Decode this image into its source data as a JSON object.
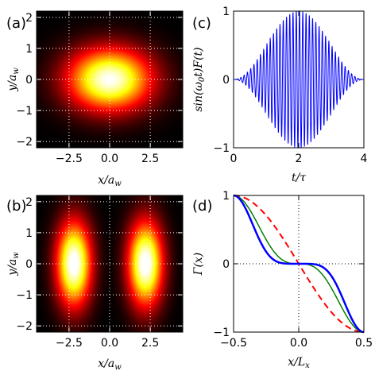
{
  "chart_data": [
    {
      "id": "a",
      "type": "heatmap",
      "panel_label": "(a)",
      "xlabel": "x/a_w",
      "ylabel": "y/a_w",
      "xlim": [
        -4.5,
        4.5
      ],
      "ylim": [
        -2.2,
        2.2
      ],
      "xticks": [
        -2.5,
        0.0,
        2.5
      ],
      "xtick_labels": [
        "−2.5",
        "0.0",
        "2.5"
      ],
      "yticks": [
        -2,
        -1,
        0,
        1,
        2
      ],
      "ytick_labels": [
        "−2",
        "−1",
        "0",
        "1",
        "2"
      ],
      "grid": true,
      "colormap": "hot",
      "field": "single elongated Gaussian mode centered at (0, 0), sigma_x ≈ 1.8, sigma_y ≈ 0.7"
    },
    {
      "id": "b",
      "type": "heatmap",
      "panel_label": "(b)",
      "xlabel": "x/a_w",
      "ylabel": "y/a_w",
      "xlim": [
        -4.5,
        4.5
      ],
      "ylim": [
        -2.2,
        2.2
      ],
      "xticks": [
        -2.5,
        0.0,
        2.5
      ],
      "xtick_labels": [
        "−2.5",
        "0.0",
        "2.5"
      ],
      "yticks": [
        -2,
        -1,
        0,
        1,
        2
      ],
      "ytick_labels": [
        "−2",
        "−1",
        "0",
        "1",
        "2"
      ],
      "grid": true,
      "colormap": "hot",
      "field": "two-lobe mode with peaks at x = −2.2 and x = 2.2, y = 0"
    },
    {
      "id": "c",
      "type": "line",
      "panel_label": "(c)",
      "xlabel": "t/τ",
      "ylabel": "sin(ω_0 t)F(t)",
      "xlim": [
        0,
        4
      ],
      "ylim": [
        -1,
        1
      ],
      "xticks": [
        0,
        2,
        4
      ],
      "xtick_labels": [
        "0",
        "2",
        "4"
      ],
      "yticks": [
        -1,
        0,
        1
      ],
      "ytick_labels": [
        "−1",
        "0",
        "1"
      ],
      "grid": false,
      "series": [
        {
          "color": "#0000ff",
          "function": "sin(2*pi*f*t) * sin^2(pi*t/4)",
          "cycles_per_unit_t": 10
        }
      ]
    },
    {
      "id": "d",
      "type": "line",
      "panel_label": "(d)",
      "xlabel": "x/L_x",
      "ylabel": "Γ(x)",
      "xlim": [
        -0.5,
        0.5
      ],
      "ylim": [
        -1,
        1
      ],
      "xticks": [
        -0.5,
        0.0,
        0.5
      ],
      "xtick_labels": [
        "−0.5",
        "0.0",
        "0.5"
      ],
      "yticks": [
        -1,
        0,
        1
      ],
      "ytick_labels": [
        "−1",
        "0",
        "1"
      ],
      "grid": "zero-lines",
      "series": [
        {
          "color": "#ff0000",
          "style": "dashed",
          "x": [
            -0.5,
            -0.4,
            -0.3,
            -0.2,
            -0.1,
            0.0,
            0.1,
            0.2,
            0.3,
            0.4,
            0.5
          ],
          "y": [
            1.0,
            0.905,
            0.655,
            0.345,
            0.095,
            0.0,
            -0.095,
            -0.345,
            -0.655,
            -0.905,
            -1.0
          ]
        },
        {
          "color": "#008000",
          "style": "solid",
          "x": [
            -0.5,
            -0.4,
            -0.3,
            -0.2,
            -0.1,
            0.0,
            0.1,
            0.2,
            0.3,
            0.4,
            0.5
          ],
          "y": [
            1.0,
            0.81,
            0.42,
            0.14,
            0.03,
            0.0,
            -0.03,
            -0.14,
            -0.42,
            -0.81,
            -1.0
          ]
        },
        {
          "color": "#0000ff",
          "style": "solid-thick",
          "x": [
            -0.5,
            -0.4,
            -0.3,
            -0.2,
            -0.1,
            0.0,
            0.1,
            0.2,
            0.3,
            0.4,
            0.5
          ],
          "y": [
            1.0,
            0.72,
            0.25,
            0.05,
            0.01,
            0.0,
            -0.01,
            -0.05,
            -0.25,
            -0.72,
            -1.0
          ]
        }
      ]
    }
  ]
}
